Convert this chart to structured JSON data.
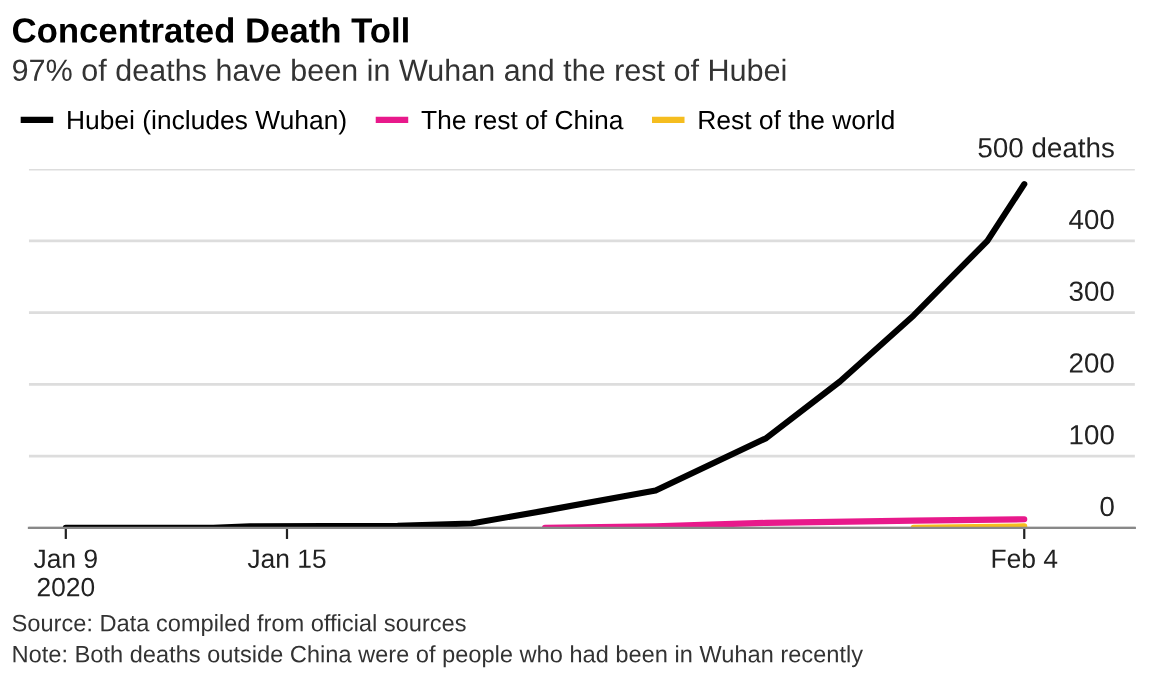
{
  "chart_data": {
    "type": "line",
    "title": "Concentrated Death Toll",
    "subtitle": "97% of deaths have been in Wuhan and the rest of Hubei",
    "annotations": [
      "Source: Data compiled from official sources",
      "Note: Both deaths outside China were of people who had been in Wuhan recently"
    ],
    "series": [
      {
        "name": "Hubei (includes Wuhan)",
        "color": "#000000",
        "x": [
          "2020-01-09",
          "2020-01-13",
          "2020-01-14",
          "2020-01-18",
          "2020-01-20",
          "2020-01-22",
          "2020-01-25",
          "2020-01-28",
          "2020-01-30",
          "2020-02-01",
          "2020-02-03",
          "2020-02-04"
        ],
        "values": [
          0,
          0,
          2,
          3,
          6,
          24,
          52,
          125,
          204,
          296,
          400,
          479
        ]
      },
      {
        "name": "The rest of China",
        "color": "#e8198b",
        "x": [
          "2020-01-22",
          "2020-01-25",
          "2020-01-28",
          "2020-02-01",
          "2020-02-04"
        ],
        "values": [
          0,
          2,
          7,
          10,
          12
        ]
      },
      {
        "name": "Rest of the world",
        "color": "#f5bd1f",
        "x": [
          "2020-02-01",
          "2020-02-04"
        ],
        "values": [
          0,
          2
        ]
      }
    ],
    "xlim": [
      "2020-01-08",
      "2020-02-07"
    ],
    "xticks": [
      {
        "value": "2020-01-09",
        "label": "Jan 9\n2020"
      },
      {
        "value": "2020-01-15",
        "label": "Jan 15"
      },
      {
        "value": "2020-02-04",
        "label": "Feb 4"
      }
    ],
    "ylim": [
      0,
      500
    ],
    "yticks": [
      0,
      100,
      200,
      300,
      400,
      {
        "value": 500,
        "label": "500 deaths"
      }
    ],
    "grid": "y",
    "legend": "top left",
    "marker": "none",
    "line_style": "solid"
  }
}
